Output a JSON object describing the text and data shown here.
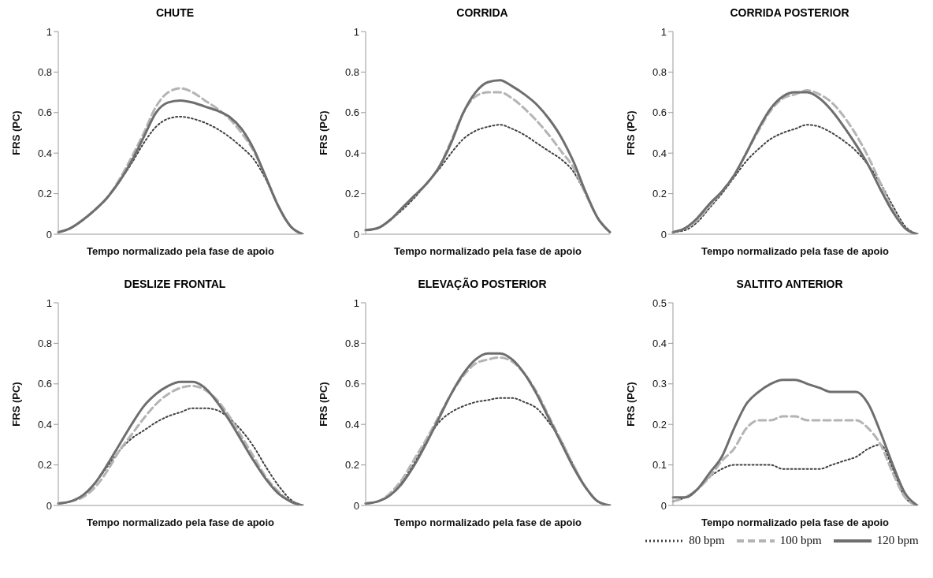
{
  "chart_data": [
    {
      "type": "line",
      "title": "CHUTE",
      "xlabel": "Tempo normalizado pela fase de apoio",
      "ylabel": "FRS (PC)",
      "categories": [
        null,
        null,
        null,
        null,
        null,
        null,
        null,
        null,
        null,
        null,
        null,
        null,
        null,
        null,
        null,
        null,
        null,
        null,
        null,
        null,
        null
      ],
      "ylim": [
        0,
        1
      ],
      "yticks": [
        0,
        0.2,
        0.4,
        0.6,
        0.8,
        1
      ],
      "marker": "none",
      "series": [
        {
          "color": "#404040",
          "line_style": "dotted",
          "values": [
            0.01,
            0.03,
            0.07,
            0.12,
            0.18,
            0.26,
            0.35,
            0.45,
            0.53,
            0.57,
            0.58,
            0.57,
            0.55,
            0.52,
            0.48,
            0.43,
            0.37,
            0.27,
            0.14,
            0.04,
            0.0
          ]
        },
        {
          "color": "#b4b4b4",
          "line_style": "dashed",
          "values": [
            0.01,
            0.03,
            0.07,
            0.12,
            0.18,
            0.27,
            0.38,
            0.5,
            0.63,
            0.7,
            0.72,
            0.7,
            0.66,
            0.62,
            0.57,
            0.5,
            0.41,
            0.28,
            0.14,
            0.04,
            0.0
          ]
        },
        {
          "color": "#6e6e6e",
          "line_style": "solid",
          "values": [
            0.01,
            0.03,
            0.07,
            0.12,
            0.18,
            0.26,
            0.36,
            0.48,
            0.6,
            0.65,
            0.66,
            0.65,
            0.63,
            0.61,
            0.58,
            0.52,
            0.42,
            0.28,
            0.14,
            0.04,
            0.0
          ]
        }
      ]
    },
    {
      "type": "line",
      "title": "CORRIDA",
      "xlabel": "Tempo normalizado pela fase de apoio",
      "ylabel": "FRS (PC)",
      "categories": [
        null,
        null,
        null,
        null,
        null,
        null,
        null,
        null,
        null,
        null,
        null,
        null,
        null,
        null,
        null,
        null,
        null,
        null,
        null,
        null,
        null
      ],
      "ylim": [
        0,
        1
      ],
      "yticks": [
        0,
        0.2,
        0.4,
        0.6,
        0.8,
        1
      ],
      "marker": "none",
      "series": [
        {
          "color": "#404040",
          "line_style": "dotted",
          "values": [
            0.02,
            0.03,
            0.07,
            0.12,
            0.18,
            0.25,
            0.32,
            0.4,
            0.47,
            0.51,
            0.53,
            0.54,
            0.52,
            0.49,
            0.45,
            0.41,
            0.37,
            0.31,
            0.2,
            0.08,
            0.01
          ]
        },
        {
          "color": "#b4b4b4",
          "line_style": "dashed",
          "values": [
            0.02,
            0.03,
            0.07,
            0.13,
            0.19,
            0.25,
            0.33,
            0.46,
            0.6,
            0.68,
            0.7,
            0.7,
            0.67,
            0.62,
            0.56,
            0.49,
            0.41,
            0.33,
            0.2,
            0.08,
            0.01
          ]
        },
        {
          "color": "#6e6e6e",
          "line_style": "solid",
          "values": [
            0.02,
            0.03,
            0.07,
            0.13,
            0.19,
            0.25,
            0.33,
            0.45,
            0.6,
            0.7,
            0.75,
            0.76,
            0.73,
            0.69,
            0.64,
            0.57,
            0.48,
            0.36,
            0.21,
            0.08,
            0.01
          ]
        }
      ]
    },
    {
      "type": "line",
      "title": "CORRIDA POSTERIOR",
      "xlabel": "Tempo normalizado pela fase de apoio",
      "ylabel": "FRS (PC)",
      "categories": [
        null,
        null,
        null,
        null,
        null,
        null,
        null,
        null,
        null,
        null,
        null,
        null,
        null,
        null,
        null,
        null,
        null,
        null,
        null,
        null,
        null
      ],
      "ylim": [
        0,
        1
      ],
      "yticks": [
        0,
        0.2,
        0.4,
        0.6,
        0.8,
        1
      ],
      "marker": "none",
      "series": [
        {
          "color": "#404040",
          "line_style": "dotted",
          "values": [
            0.01,
            0.02,
            0.06,
            0.13,
            0.2,
            0.28,
            0.36,
            0.42,
            0.47,
            0.5,
            0.52,
            0.54,
            0.53,
            0.5,
            0.46,
            0.41,
            0.34,
            0.25,
            0.14,
            0.04,
            0.0
          ]
        },
        {
          "color": "#b4b4b4",
          "line_style": "dashed",
          "values": [
            0.01,
            0.03,
            0.07,
            0.14,
            0.21,
            0.29,
            0.4,
            0.51,
            0.61,
            0.67,
            0.69,
            0.71,
            0.69,
            0.65,
            0.58,
            0.49,
            0.38,
            0.25,
            0.12,
            0.03,
            0.0
          ]
        },
        {
          "color": "#6e6e6e",
          "line_style": "solid",
          "values": [
            0.01,
            0.03,
            0.08,
            0.15,
            0.21,
            0.29,
            0.4,
            0.52,
            0.62,
            0.68,
            0.7,
            0.7,
            0.67,
            0.61,
            0.53,
            0.44,
            0.34,
            0.22,
            0.11,
            0.03,
            0.0
          ]
        }
      ]
    },
    {
      "type": "line",
      "title": "DESLIZE FRONTAL",
      "xlabel": "Tempo normalizado pela fase de apoio",
      "ylabel": "FRS (PC)",
      "categories": [
        null,
        null,
        null,
        null,
        null,
        null,
        null,
        null,
        null,
        null,
        null,
        null,
        null,
        null,
        null,
        null,
        null,
        null,
        null,
        null,
        null
      ],
      "ylim": [
        0,
        1
      ],
      "yticks": [
        0,
        0.2,
        0.4,
        0.6,
        0.8,
        1
      ],
      "marker": "none",
      "series": [
        {
          "color": "#404040",
          "line_style": "dotted",
          "values": [
            0.01,
            0.02,
            0.05,
            0.11,
            0.19,
            0.27,
            0.33,
            0.37,
            0.41,
            0.44,
            0.46,
            0.48,
            0.48,
            0.47,
            0.43,
            0.37,
            0.29,
            0.19,
            0.1,
            0.03,
            0.0
          ]
        },
        {
          "color": "#b4b4b4",
          "line_style": "dashed",
          "values": [
            0.01,
            0.02,
            0.04,
            0.09,
            0.17,
            0.27,
            0.35,
            0.43,
            0.5,
            0.55,
            0.58,
            0.59,
            0.57,
            0.52,
            0.44,
            0.34,
            0.24,
            0.14,
            0.07,
            0.02,
            0.0
          ]
        },
        {
          "color": "#6e6e6e",
          "line_style": "solid",
          "values": [
            0.01,
            0.02,
            0.05,
            0.11,
            0.2,
            0.3,
            0.4,
            0.49,
            0.55,
            0.59,
            0.61,
            0.61,
            0.58,
            0.51,
            0.42,
            0.32,
            0.22,
            0.13,
            0.06,
            0.02,
            0.0
          ]
        }
      ]
    },
    {
      "type": "line",
      "title": "ELEVAÇÃO POSTERIOR",
      "xlabel": "Tempo normalizado pela fase de apoio",
      "ylabel": "FRS (PC)",
      "categories": [
        null,
        null,
        null,
        null,
        null,
        null,
        null,
        null,
        null,
        null,
        null,
        null,
        null,
        null,
        null,
        null,
        null,
        null,
        null,
        null,
        null
      ],
      "ylim": [
        0,
        1
      ],
      "yticks": [
        0,
        0.2,
        0.4,
        0.6,
        0.8,
        1
      ],
      "marker": "none",
      "series": [
        {
          "color": "#404040",
          "line_style": "dotted",
          "values": [
            0.01,
            0.02,
            0.05,
            0.12,
            0.21,
            0.32,
            0.41,
            0.46,
            0.49,
            0.51,
            0.52,
            0.53,
            0.53,
            0.51,
            0.48,
            0.41,
            0.32,
            0.2,
            0.09,
            0.02,
            0.0
          ]
        },
        {
          "color": "#b4b4b4",
          "line_style": "dashed",
          "values": [
            0.01,
            0.02,
            0.06,
            0.13,
            0.23,
            0.33,
            0.44,
            0.55,
            0.64,
            0.7,
            0.72,
            0.73,
            0.71,
            0.65,
            0.56,
            0.44,
            0.32,
            0.2,
            0.09,
            0.02,
            0.0
          ]
        },
        {
          "color": "#6e6e6e",
          "line_style": "solid",
          "values": [
            0.01,
            0.02,
            0.05,
            0.11,
            0.2,
            0.31,
            0.43,
            0.55,
            0.65,
            0.72,
            0.75,
            0.75,
            0.72,
            0.65,
            0.55,
            0.43,
            0.31,
            0.19,
            0.09,
            0.02,
            0.0
          ]
        }
      ]
    },
    {
      "type": "line",
      "title": "SALTITO ANTERIOR",
      "xlabel": "Tempo normalizado pela fase de apoio",
      "ylabel": "FRS (PC)",
      "categories": [
        null,
        null,
        null,
        null,
        null,
        null,
        null,
        null,
        null,
        null,
        null,
        null,
        null,
        null,
        null,
        null,
        null,
        null,
        null,
        null,
        null
      ],
      "ylim": [
        0,
        0.5
      ],
      "yticks": [
        0,
        0.1,
        0.2,
        0.3,
        0.4,
        0.5
      ],
      "marker": "none",
      "legend": "bottom",
      "series": [
        {
          "name": "80 bpm",
          "color": "#404040",
          "line_style": "dotted",
          "values": [
            0.01,
            0.02,
            0.04,
            0.07,
            0.09,
            0.1,
            0.1,
            0.1,
            0.1,
            0.09,
            0.09,
            0.09,
            0.09,
            0.1,
            0.11,
            0.12,
            0.14,
            0.15,
            0.09,
            0.02,
            0.0
          ]
        },
        {
          "name": "100 bpm",
          "color": "#b4b4b4",
          "line_style": "dashed",
          "values": [
            0.01,
            0.02,
            0.04,
            0.07,
            0.11,
            0.14,
            0.19,
            0.21,
            0.21,
            0.22,
            0.22,
            0.21,
            0.21,
            0.21,
            0.21,
            0.21,
            0.19,
            0.15,
            0.08,
            0.02,
            0.0
          ]
        },
        {
          "name": "120 bpm",
          "color": "#6e6e6e",
          "line_style": "solid",
          "values": [
            0.02,
            0.02,
            0.04,
            0.08,
            0.12,
            0.19,
            0.25,
            0.28,
            0.3,
            0.31,
            0.31,
            0.3,
            0.29,
            0.28,
            0.28,
            0.28,
            0.25,
            0.18,
            0.1,
            0.03,
            0.0
          ]
        }
      ]
    }
  ]
}
